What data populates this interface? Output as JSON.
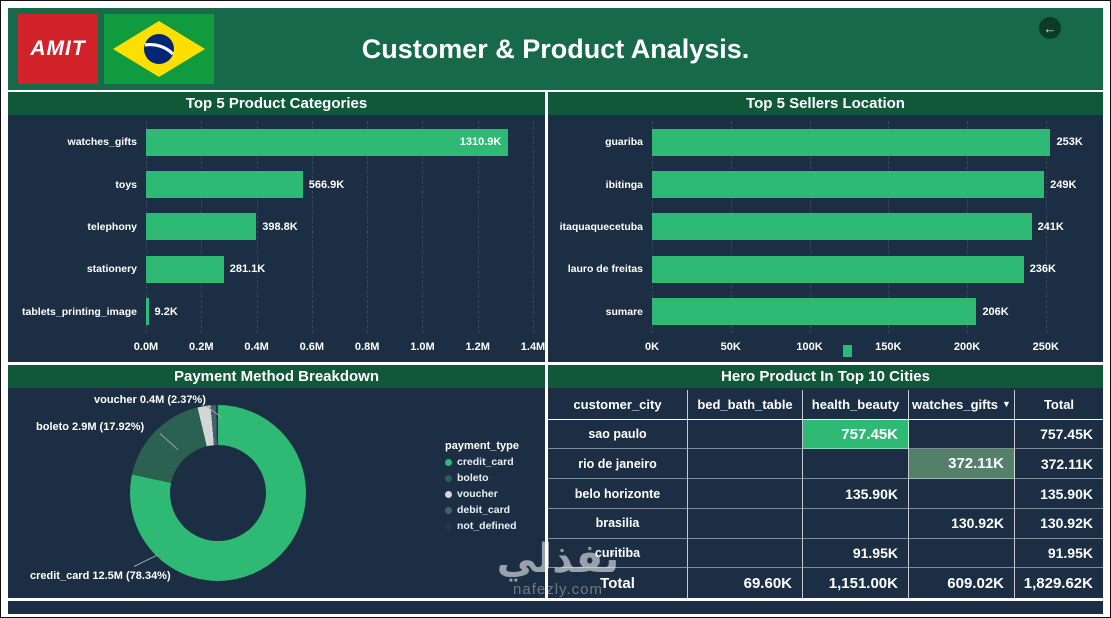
{
  "header": {
    "brand": "AMIT",
    "title": "Customer & Product Analysis.",
    "back_icon": "←"
  },
  "watermark": {
    "text": "نفذلي",
    "site": "nafezly.com"
  },
  "colors": {
    "navy": "#1c2e43",
    "header_green": "#176a49",
    "strip_green": "#11583a",
    "bar_green": "#2eba74",
    "highlight_muted": "#54806a",
    "logo_red": "#d2232a"
  },
  "chart_data": [
    {
      "id": "categories",
      "type": "bar",
      "orientation": "horizontal",
      "title": "Top 5 Product Categories",
      "categories": [
        "watches_gifts",
        "toys",
        "telephony",
        "stationery",
        "tablets_printing_image"
      ],
      "values": [
        1310900,
        566900,
        398800,
        281100,
        9200
      ],
      "value_labels": [
        "1310.9K",
        "566.9K",
        "398.8K",
        "281.1K",
        "9.2K"
      ],
      "value_label_inside": [
        true,
        false,
        false,
        false,
        false
      ],
      "x_ticks": [
        "0.0M",
        "0.2M",
        "0.4M",
        "0.6M",
        "0.8M",
        "1.0M",
        "1.2M",
        "1.4M"
      ],
      "tick_values": [
        0,
        200000,
        400000,
        600000,
        800000,
        1000000,
        1200000,
        1400000
      ],
      "xlim": [
        0,
        1400000
      ],
      "bar_color": "#2eba74",
      "grid": true,
      "legend_position": "none"
    },
    {
      "id": "sellers",
      "type": "bar",
      "orientation": "horizontal",
      "title": "Top 5 Sellers Location",
      "categories": [
        "guariba",
        "ibitinga",
        "itaquaquecetuba",
        "lauro de freitas",
        "sumare"
      ],
      "values": [
        253000,
        249000,
        241000,
        236000,
        206000
      ],
      "value_labels": [
        "253K",
        "249K",
        "241K",
        "236K",
        "206K"
      ],
      "value_label_inside": [
        false,
        false,
        false,
        false,
        false
      ],
      "x_ticks": [
        "0K",
        "50K",
        "100K",
        "150K",
        "200K",
        "250K"
      ],
      "tick_values": [
        0,
        50000,
        100000,
        150000,
        200000,
        250000
      ],
      "xlim": [
        0,
        280000
      ],
      "bar_color": "#2eba74",
      "grid": true,
      "legend_position": "none"
    },
    {
      "id": "payment",
      "type": "pie",
      "title": "Payment Method Breakdown",
      "legend_title": "payment_type",
      "slices": [
        {
          "label": "credit_card",
          "amount": "12.5M",
          "pct": 78.34,
          "color": "#2eba74"
        },
        {
          "label": "boleto",
          "amount": "2.9M",
          "pct": 17.92,
          "color": "#2b6150"
        },
        {
          "label": "voucher",
          "amount": "0.4M",
          "pct": 2.37,
          "color": "#d2d6d5"
        },
        {
          "label": "debit_card",
          "amount": "",
          "pct": 1.0,
          "color": "#44606f"
        },
        {
          "label": "not_defined",
          "amount": "",
          "pct": 0.37,
          "color": "#223649"
        }
      ],
      "callouts": [
        "voucher 0.4M (2.37%)",
        "boleto 2.9M (17.92%)",
        "credit_card 12.5M (78.34%)"
      ],
      "legend_position": "right"
    },
    {
      "id": "hero",
      "type": "table",
      "title": "Hero Product In Top 10 Cities",
      "columns": [
        "customer_city",
        "bed_bath_table",
        "health_beauty",
        "watches_gifts",
        "Total"
      ],
      "sort_col": 3,
      "sort_icon": "▼",
      "rows": [
        {
          "cells": [
            "sao paulo",
            "",
            "757.45K",
            "",
            "757.45K"
          ],
          "highlight": {
            "col": 2,
            "style": "bright"
          }
        },
        {
          "cells": [
            "rio de janeiro",
            "",
            "",
            "372.11K",
            "372.11K"
          ],
          "highlight": {
            "col": 3,
            "style": "muted"
          }
        },
        {
          "cells": [
            "belo horizonte",
            "",
            "135.90K",
            "",
            "135.90K"
          ]
        },
        {
          "cells": [
            "brasilia",
            "",
            "",
            "130.92K",
            "130.92K"
          ]
        },
        {
          "cells": [
            "curitiba",
            "",
            "91.95K",
            "",
            "91.95K"
          ]
        },
        {
          "cells": [
            "Total",
            "69.60K",
            "1,151.00K",
            "609.02K",
            "1,829.62K"
          ],
          "is_total": true
        }
      ]
    }
  ]
}
